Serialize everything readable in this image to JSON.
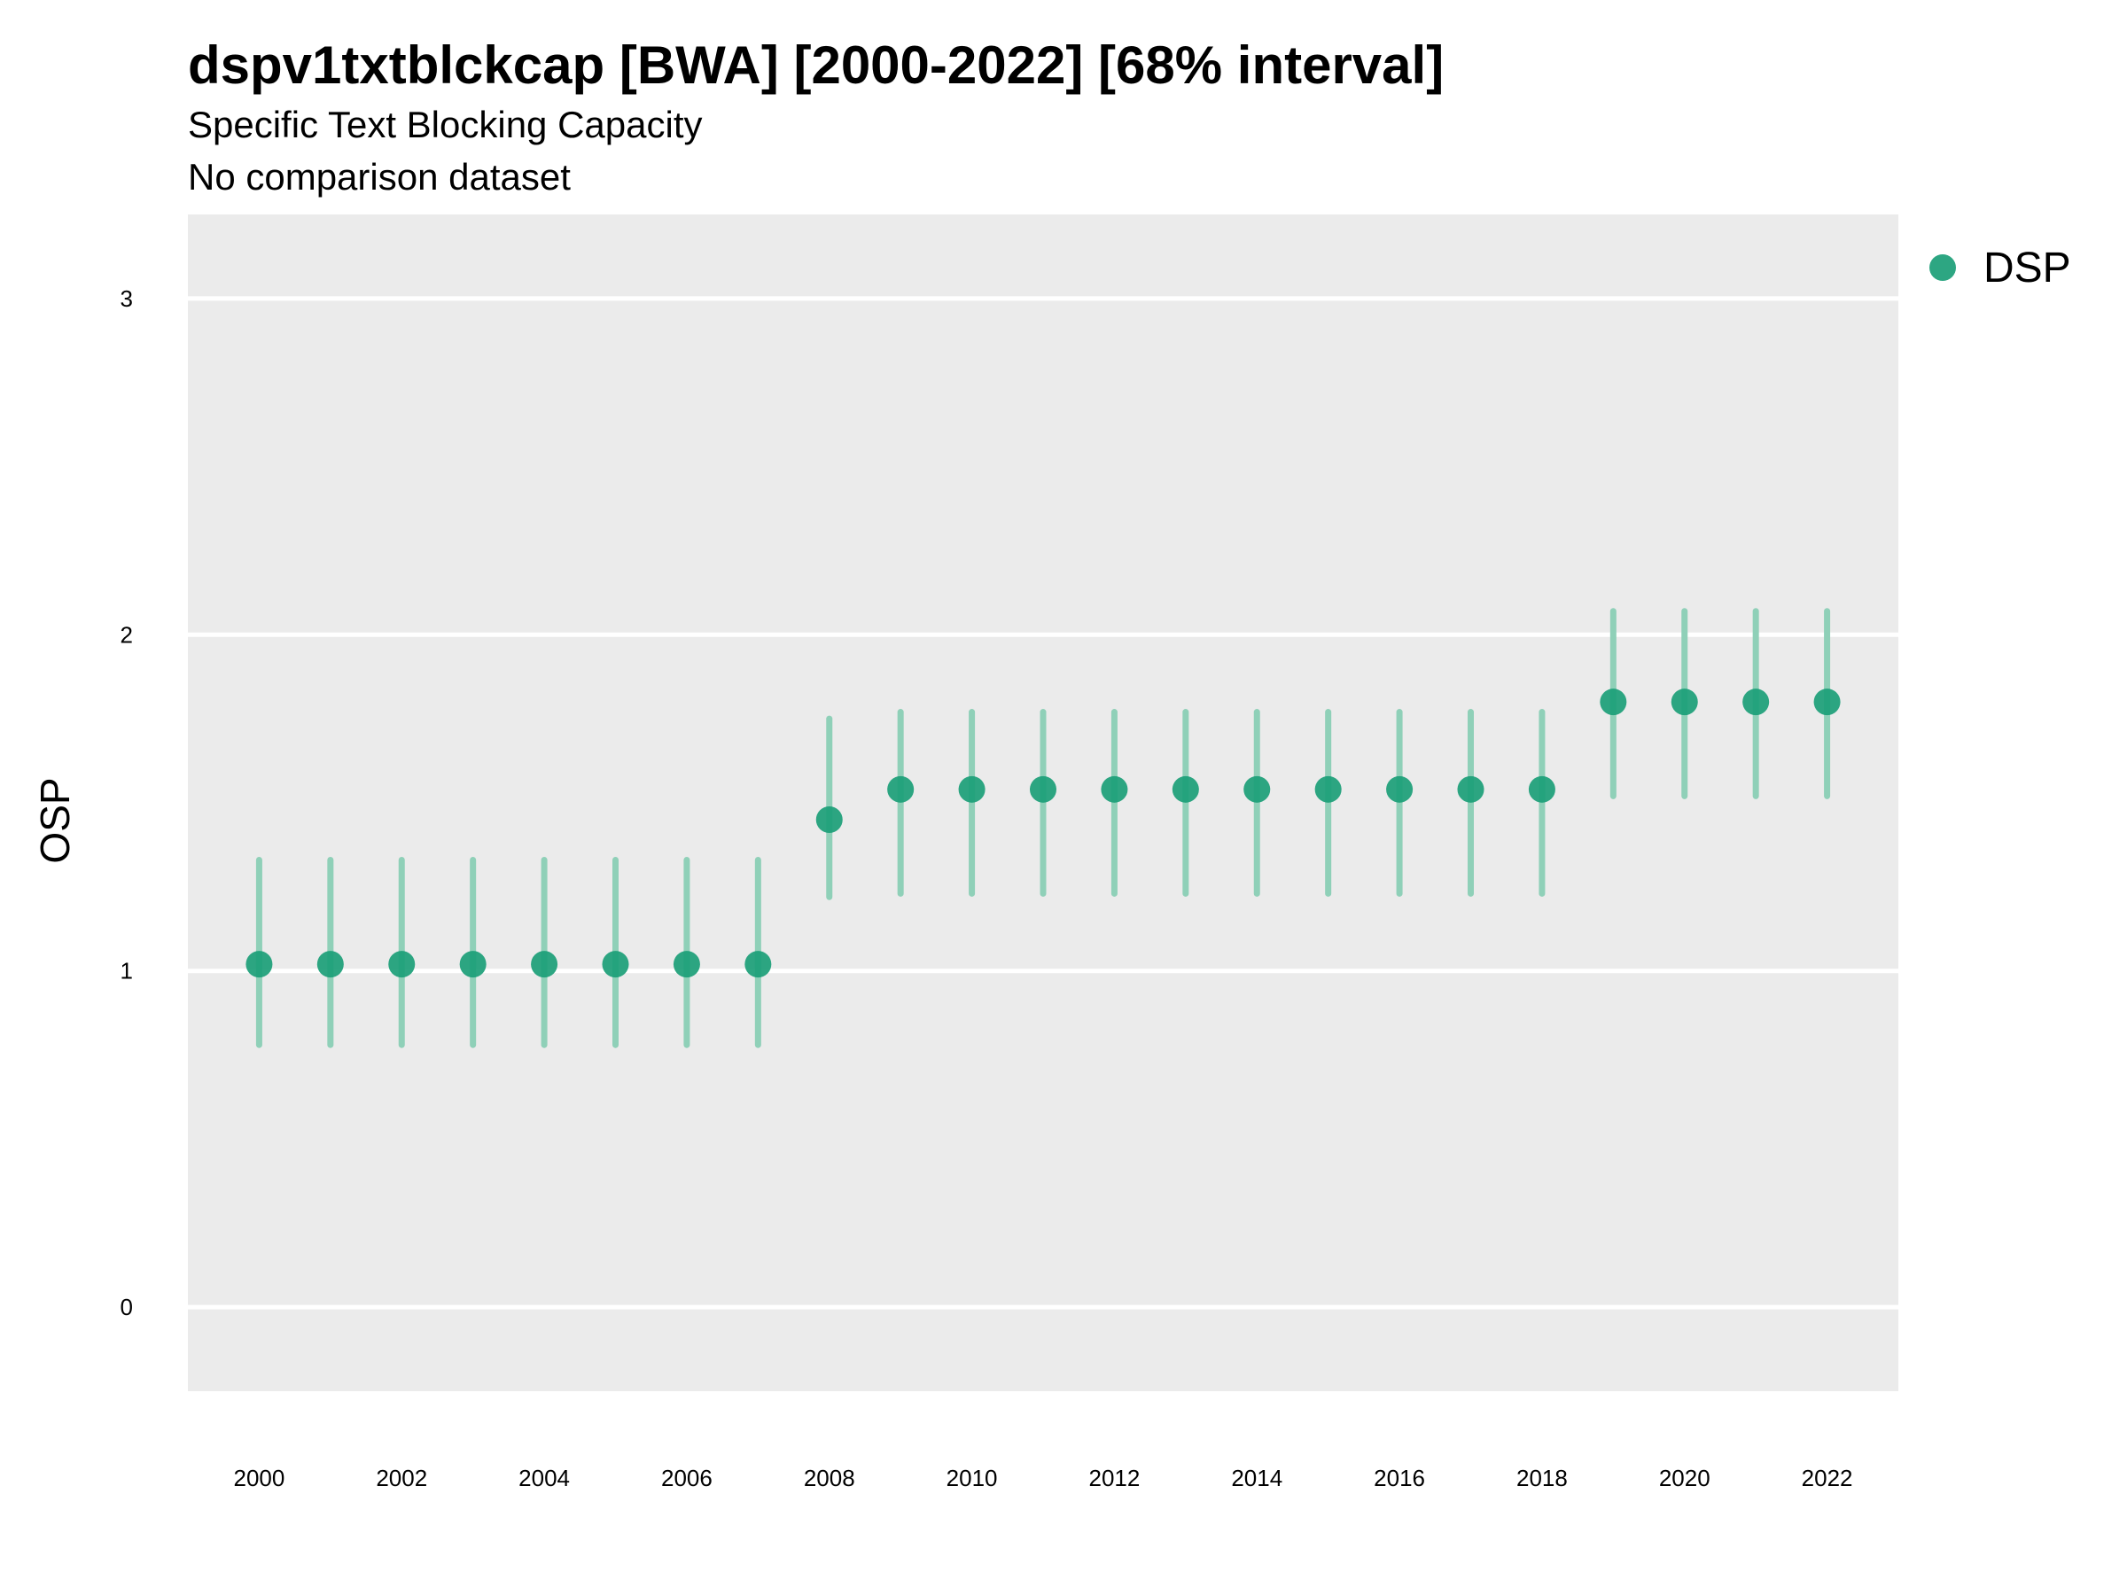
{
  "chart_data": {
    "type": "scatter",
    "title": "dspv1txtblckcap [BWA] [2000-2022] [68% interval]",
    "subtitle": "Specific Text Blocking Capacity",
    "caption_line": "No comparison dataset",
    "xlabel": "",
    "ylabel": "OSP",
    "xlim": [
      1999,
      2023
    ],
    "ylim": [
      -0.25,
      3.25
    ],
    "x_ticks": [
      2000,
      2002,
      2004,
      2006,
      2008,
      2010,
      2012,
      2014,
      2016,
      2018,
      2020,
      2022
    ],
    "y_ticks": [
      0,
      1,
      2,
      3
    ],
    "grid": true,
    "legend_position": "top-right",
    "series": [
      {
        "name": "DSP",
        "color": "#1b9e77",
        "x": [
          2000,
          2001,
          2002,
          2003,
          2004,
          2005,
          2006,
          2007,
          2008,
          2009,
          2010,
          2011,
          2012,
          2013,
          2014,
          2015,
          2016,
          2017,
          2018,
          2019,
          2020,
          2021,
          2022
        ],
        "y": [
          1.02,
          1.02,
          1.02,
          1.02,
          1.02,
          1.02,
          1.02,
          1.02,
          1.45,
          1.54,
          1.54,
          1.54,
          1.54,
          1.54,
          1.54,
          1.54,
          1.54,
          1.54,
          1.54,
          1.8,
          1.8,
          1.8,
          1.8
        ],
        "lower": [
          0.78,
          0.78,
          0.78,
          0.78,
          0.78,
          0.78,
          0.78,
          0.78,
          1.22,
          1.23,
          1.23,
          1.23,
          1.23,
          1.23,
          1.23,
          1.23,
          1.23,
          1.23,
          1.23,
          1.52,
          1.52,
          1.52,
          1.52
        ],
        "upper": [
          1.33,
          1.33,
          1.33,
          1.33,
          1.33,
          1.33,
          1.33,
          1.33,
          1.75,
          1.77,
          1.77,
          1.77,
          1.77,
          1.77,
          1.77,
          1.77,
          1.77,
          1.77,
          1.77,
          2.07,
          2.07,
          2.07,
          2.07
        ]
      }
    ]
  },
  "colors": {
    "panel_background": "#ebebeb",
    "gridline": "#ffffff",
    "point": "#1b9e77",
    "interval": "#8fd0b8"
  }
}
